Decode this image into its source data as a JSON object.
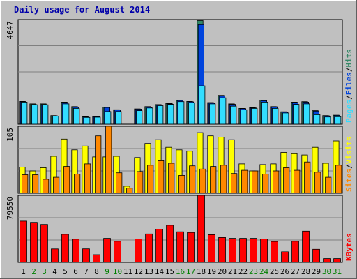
{
  "chart_data": {
    "type": "bar",
    "title": "Daily usage for August 2014",
    "days": [
      "1",
      "2",
      "3",
      "4",
      "5",
      "6",
      "7",
      "8",
      "9",
      "10",
      "11",
      "12",
      "13",
      "14",
      "15",
      "16",
      "17",
      "18",
      "19",
      "20",
      "21",
      "22",
      "23",
      "24",
      "25",
      "26",
      "27",
      "28",
      "29",
      "30",
      "31"
    ],
    "weekend_days": [
      "2",
      "3",
      "9",
      "10",
      "16",
      "17",
      "23",
      "24",
      "30",
      "31"
    ],
    "colors": {
      "hits": "#338866",
      "files": "#0044dd",
      "pages": "#33ddff",
      "visits": "#ffff00",
      "sites": "#ff8800",
      "kbytes": "#ff0000",
      "weekday_label": "#000000",
      "weekend_label": "#008000"
    },
    "panels": [
      {
        "id": "top",
        "ymax_label": "4647",
        "ymax": 4647,
        "legend": [
          {
            "text": "Pages",
            "color": "#33ddff"
          },
          {
            "text": "/",
            "color": "#000000"
          },
          {
            "text": "Files",
            "color": "#0044dd"
          },
          {
            "text": "/",
            "color": "#000000"
          },
          {
            "text": "Hits",
            "color": "#338866"
          }
        ],
        "series": [
          {
            "name": "Hits",
            "color": "#338866",
            "values": [
              1010,
              900,
              900,
              380,
              980,
              780,
              330,
              340,
              760,
              640,
              0,
              680,
              780,
              870,
              920,
              1060,
              1010,
              4600,
              960,
              1280,
              900,
              700,
              740,
              1070,
              780,
              550,
              980,
              1000,
              600,
              380,
              400
            ]
          },
          {
            "name": "Files",
            "color": "#0044dd",
            "values": [
              1000,
              870,
              870,
              370,
              960,
              750,
              320,
              330,
              740,
              630,
              0,
              670,
              760,
              850,
              900,
              1050,
              990,
              4420,
              940,
              1250,
              880,
              690,
              720,
              1040,
              770,
              540,
              960,
              980,
              580,
              370,
              390
            ]
          },
          {
            "name": "Pages",
            "color": "#33ddff",
            "values": [
              980,
              860,
              860,
              360,
              900,
              700,
              300,
              310,
              560,
              560,
              0,
              600,
              720,
              820,
              880,
              1000,
              950,
              1700,
              900,
              1170,
              800,
              640,
              700,
              980,
              700,
              500,
              880,
              900,
              420,
              320,
              330
            ]
          }
        ]
      },
      {
        "id": "middle",
        "ymax_label": "105",
        "ymax": 105,
        "legend": [
          {
            "text": "Sites",
            "color": "#ff8800"
          },
          {
            "text": "/",
            "color": "#000000"
          },
          {
            "text": "Visits",
            "color": "#ffff00"
          }
        ],
        "series": [
          {
            "name": "Visits",
            "color": "#ffff00",
            "values": [
              41,
              35,
              40,
              58,
              85,
              68,
              74,
              57,
              57,
              58,
              11,
              56,
              78,
              84,
              72,
              68,
              66,
              95,
              90,
              88,
              84,
              46,
              35,
              45,
              46,
              64,
              62,
              60,
              72,
              47,
              82
            ]
          },
          {
            "name": "Sites",
            "color": "#ff8800",
            "values": [
              29,
              29,
              22,
              25,
              42,
              30,
              46,
              90,
              105,
              32,
              8,
              34,
              44,
              51,
              47,
              28,
              43,
              38,
              42,
              44,
              31,
              36,
              35,
              30,
              35,
              40,
              36,
              49,
              33,
              25,
              44
            ]
          }
        ]
      },
      {
        "id": "bottom",
        "ymax_label": "79550",
        "ymax": 79550,
        "legend": [
          {
            "text": "KBytes",
            "color": "#ff0000"
          }
        ],
        "series": [
          {
            "name": "KBytes",
            "color": "#ff0000",
            "values": [
              49000,
              47500,
              45000,
              15900,
              33200,
              27500,
              16000,
              9100,
              28500,
              25000,
              0,
              27800,
              33700,
              39300,
              44000,
              36300,
              35500,
              79550,
              32800,
              29500,
              28500,
              28500,
              28500,
              27700,
              24800,
              12500,
              25000,
              37000,
              15500,
              4500,
              4500
            ]
          }
        ]
      }
    ]
  }
}
